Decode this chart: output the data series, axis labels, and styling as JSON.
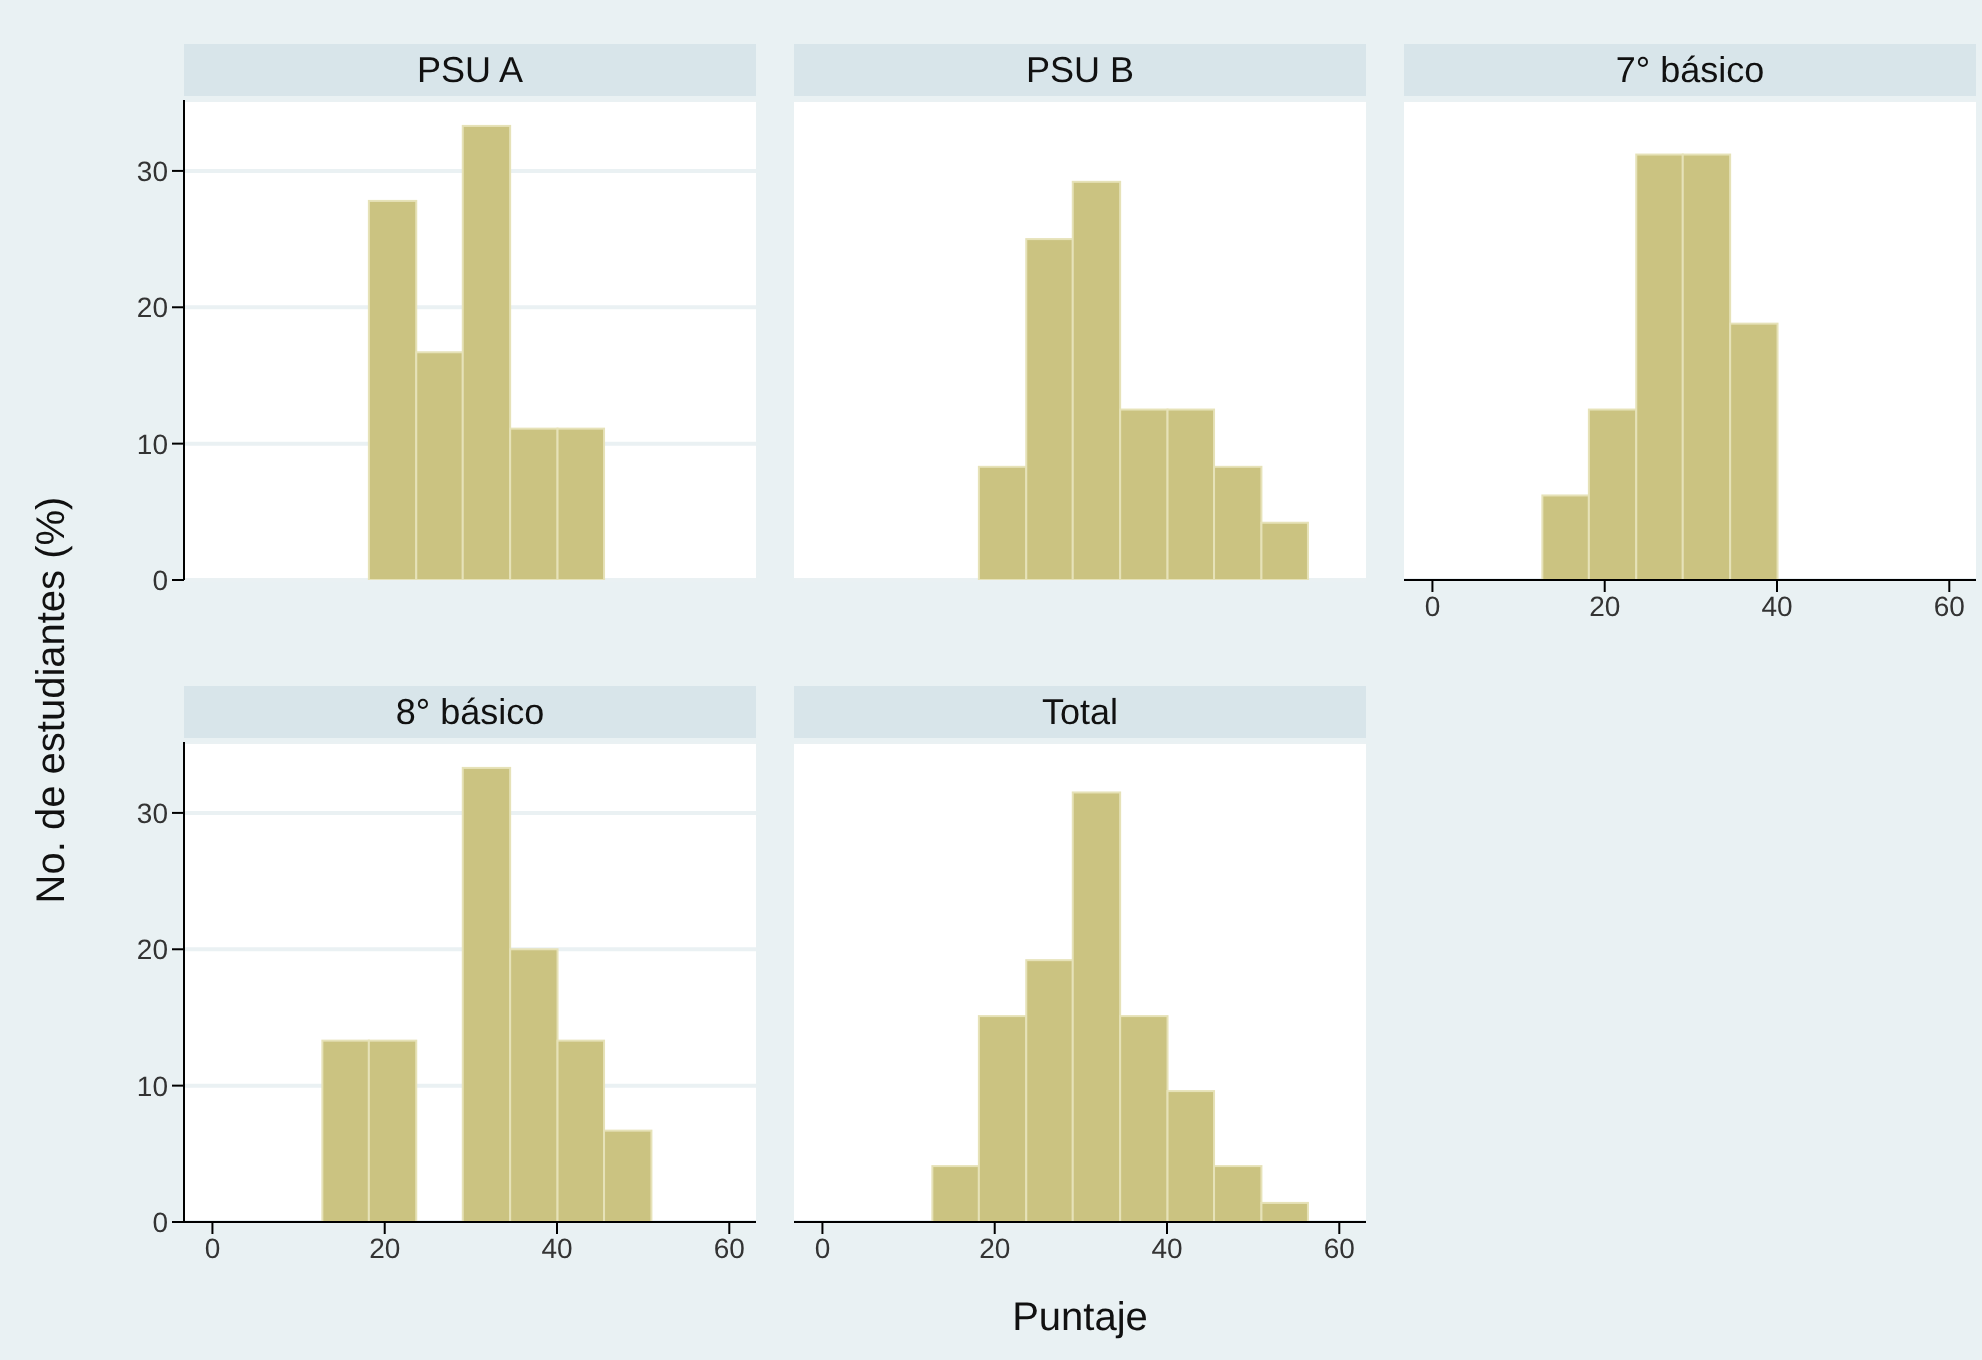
{
  "chart_data": [
    {
      "type": "histogram",
      "title": "PSU A",
      "ylabel": "No. de estudiantes (%)",
      "bins": [
        18.1,
        23.6,
        29.0,
        34.5,
        40.0,
        45.4
      ],
      "values": [
        27.8,
        16.7,
        33.3,
        11.1,
        11.1
      ],
      "color": "#cbc381",
      "xlim": [
        -3.3,
        63.1
      ],
      "ylim": [
        0,
        35.2
      ],
      "xticks": [
        0,
        20,
        40,
        60
      ],
      "yticks": [
        0,
        10,
        20,
        30
      ],
      "grid": "y",
      "tick_labels": "y"
    },
    {
      "type": "histogram",
      "title": "PSU B",
      "bins": [
        18.1,
        23.6,
        29.0,
        34.5,
        40.0,
        45.4,
        50.9,
        56.3
      ],
      "values": [
        8.3,
        25,
        29.2,
        12.5,
        12.5,
        8.3,
        4.2
      ],
      "color": "#cbc381",
      "xlim": [
        -3.3,
        63.1
      ],
      "ylim": [
        0,
        35.2
      ],
      "xticks": [
        0,
        20,
        40,
        60
      ],
      "yticks": [
        0,
        10,
        20,
        30
      ],
      "grid": "y",
      "tick_labels": false
    },
    {
      "type": "histogram",
      "title": "7° básico",
      "bins": [
        12.7,
        18.1,
        23.6,
        29.0,
        34.5,
        40.0
      ],
      "values": [
        6.2,
        12.5,
        31.2,
        31.2,
        18.8
      ],
      "color": "#cbc381",
      "xlim": [
        -3.3,
        63.1
      ],
      "ylim": [
        0,
        35.2
      ],
      "xticks": [
        0,
        20,
        40,
        60
      ],
      "yticks": [
        0,
        10,
        20,
        30
      ],
      "grid": "y",
      "tick_labels": "x"
    },
    {
      "type": "histogram",
      "title": "8° básico",
      "bins": [
        12.7,
        18.1,
        23.6,
        29.0,
        34.5,
        40.0,
        45.4,
        50.9
      ],
      "values": [
        13.3,
        13.3,
        0,
        33.3,
        20,
        13.3,
        6.7
      ],
      "color": "#cbc381",
      "xlim": [
        -3.3,
        63.1
      ],
      "ylim": [
        0,
        35.2
      ],
      "xticks": [
        0,
        20,
        40,
        60
      ],
      "yticks": [
        0,
        10,
        20,
        30
      ],
      "grid": "y"
    },
    {
      "type": "histogram",
      "title": "Total",
      "xlabel": "Puntaje",
      "bins": [
        12.7,
        18.1,
        23.6,
        29.0,
        34.5,
        40.0,
        45.4,
        50.9,
        56.3
      ],
      "values": [
        4.1,
        15.1,
        19.2,
        31.5,
        15.1,
        9.6,
        4.1,
        1.4
      ],
      "color": "#cbc381",
      "xlim": [
        -3.3,
        63.1
      ],
      "ylim": [
        0,
        35.2
      ],
      "xticks": [
        0,
        20,
        40,
        60
      ],
      "yticks": [
        0,
        10,
        20,
        30
      ],
      "grid": "y",
      "tick_labels": "x"
    }
  ]
}
